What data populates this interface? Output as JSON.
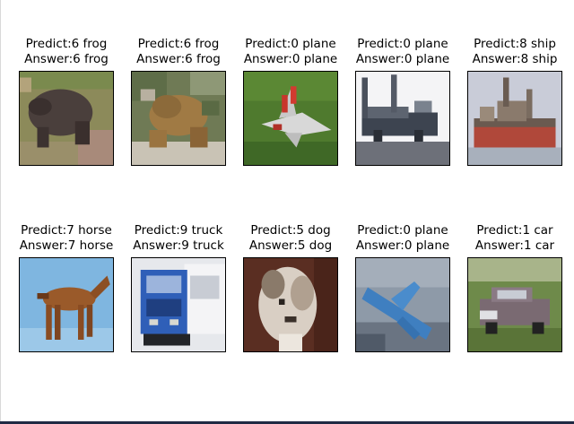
{
  "grid": {
    "rows": 2,
    "cols": 5,
    "items": [
      {
        "predict": "Predict:6 frog",
        "answer": "Answer:6 frog",
        "subject": "frog"
      },
      {
        "predict": "Predict:6 frog",
        "answer": "Answer:6 frog",
        "subject": "frog"
      },
      {
        "predict": "Predict:0 plane",
        "answer": "Answer:0 plane",
        "subject": "plane"
      },
      {
        "predict": "Predict:0 plane",
        "answer": "Answer:0 plane",
        "subject": "plane"
      },
      {
        "predict": "Predict:8 ship",
        "answer": "Answer:8 ship",
        "subject": "ship"
      },
      {
        "predict": "Predict:7 horse",
        "answer": "Answer:7 horse",
        "subject": "horse"
      },
      {
        "predict": "Predict:9 truck",
        "answer": "Answer:9 truck",
        "subject": "truck"
      },
      {
        "predict": "Predict:5 dog",
        "answer": "Answer:5 dog",
        "subject": "dog"
      },
      {
        "predict": "Predict:0 plane",
        "answer": "Answer:0 plane",
        "subject": "plane"
      },
      {
        "predict": "Predict:1 car",
        "answer": "Answer:1 car",
        "subject": "car"
      }
    ]
  },
  "colors": {
    "text": "#000000",
    "background": "#ffffff",
    "frame": "#000000"
  }
}
